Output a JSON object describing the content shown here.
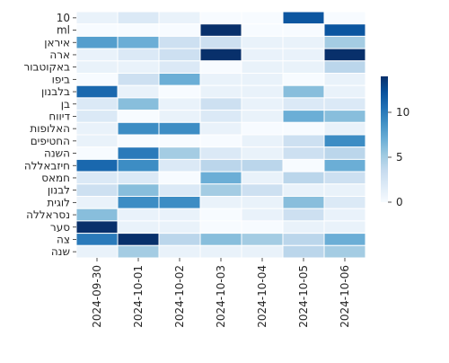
{
  "chart_data": {
    "type": "heatmap",
    "title": "",
    "xlabel": "",
    "ylabel": "",
    "x": [
      "2024-09-30",
      "2024-10-01",
      "2024-10-02",
      "2024-10-03",
      "2024-10-04",
      "2024-10-05",
      "2024-10-06"
    ],
    "y": [
      "10",
      "ml",
      "איראן",
      "ארה",
      "באקוטבור",
      "ביפו",
      "בלבנון",
      "בן",
      "דיווח",
      "האלופות",
      "החטיפים",
      "השנה",
      "חיזבאללה",
      "חמאס",
      "לבנון",
      "לוגית",
      "נסראללה",
      "סער",
      "צה",
      "שנה"
    ],
    "values": [
      [
        1,
        2,
        1,
        0,
        0,
        12,
        0
      ],
      [
        0,
        0,
        0,
        14,
        0,
        0,
        12
      ],
      [
        8,
        7,
        3,
        3,
        1,
        1,
        5
      ],
      [
        1,
        2,
        3,
        14,
        1,
        1,
        14
      ],
      [
        1,
        1,
        2,
        0,
        1,
        1,
        4
      ],
      [
        0,
        3,
        7,
        1,
        1,
        0,
        1
      ],
      [
        11,
        1,
        0,
        1,
        1,
        6,
        1
      ],
      [
        2,
        6,
        1,
        3,
        1,
        2,
        2
      ],
      [
        2,
        0,
        1,
        2,
        1,
        7,
        6
      ],
      [
        1,
        9,
        9,
        1,
        0,
        0,
        1
      ],
      [
        1,
        0,
        0,
        0,
        1,
        3,
        9
      ],
      [
        0,
        10,
        5,
        2,
        1,
        3,
        4
      ],
      [
        11,
        9,
        2,
        4,
        4,
        0,
        7
      ],
      [
        2,
        2,
        0,
        7,
        1,
        4,
        3
      ],
      [
        3,
        6,
        2,
        5,
        3,
        1,
        1
      ],
      [
        1,
        9,
        9,
        1,
        1,
        6,
        2
      ],
      [
        6,
        1,
        1,
        0,
        1,
        3,
        1
      ],
      [
        14,
        1,
        1,
        0,
        0,
        1,
        1
      ],
      [
        10,
        14,
        4,
        6,
        5,
        4,
        7
      ],
      [
        1,
        5,
        1,
        1,
        1,
        4,
        5
      ]
    ],
    "colormap": "Blues",
    "vmin": 0,
    "vmax": 14,
    "colorbar_ticks": [
      0,
      5,
      10
    ],
    "grid": true,
    "legend": "right"
  }
}
